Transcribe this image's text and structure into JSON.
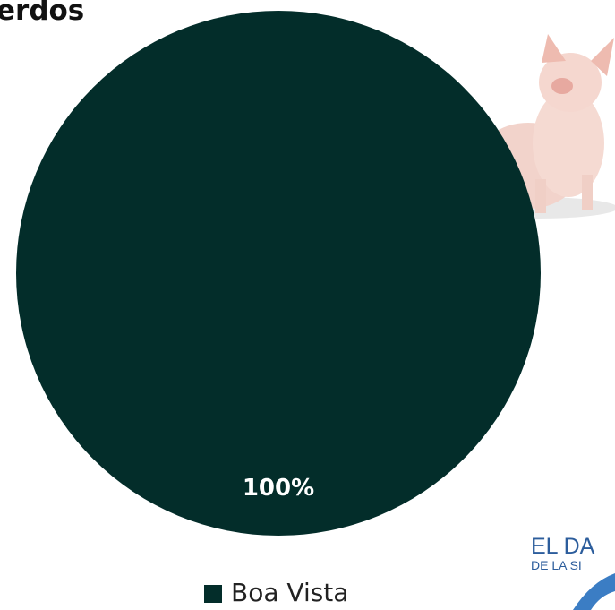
{
  "chart_data": {
    "type": "pie",
    "title": "erdos",
    "categories": [
      "Boa Vista"
    ],
    "values": [
      100
    ],
    "value_labels": [
      "100%"
    ],
    "colors": [
      "#032d2a"
    ]
  },
  "logo": {
    "line1": "EL DA",
    "line2": "DE LA SI"
  }
}
